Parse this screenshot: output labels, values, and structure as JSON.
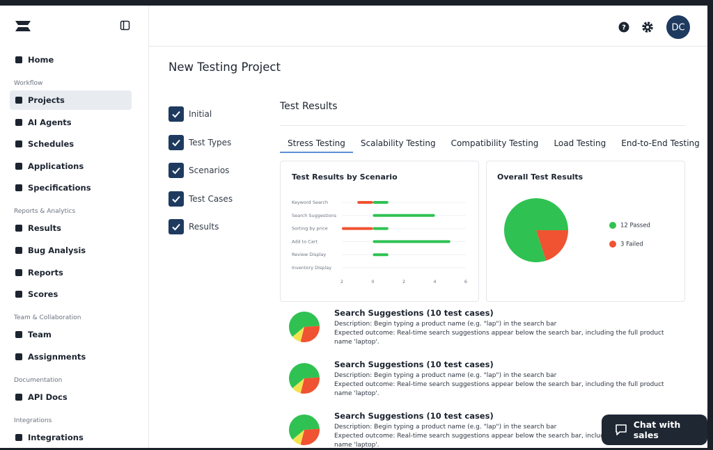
{
  "header": {
    "avatar": "DC"
  },
  "sidebar": {
    "groups": [
      {
        "items": [
          {
            "label": "Home"
          }
        ]
      },
      {
        "label": "Workflow",
        "items": [
          {
            "label": "Projects",
            "active": true
          },
          {
            "label": "AI Agents"
          },
          {
            "label": "Schedules"
          },
          {
            "label": "Applications"
          },
          {
            "label": "Specifications"
          }
        ]
      },
      {
        "label": "Reports & Analytics",
        "items": [
          {
            "label": "Results"
          },
          {
            "label": "Bug Analysis"
          },
          {
            "label": "Reports"
          },
          {
            "label": "Scores"
          }
        ]
      },
      {
        "label": "Team & Collaboration",
        "items": [
          {
            "label": "Team"
          },
          {
            "label": "Assignments"
          }
        ]
      },
      {
        "label": "Documentation",
        "items": [
          {
            "label": "API Docs"
          }
        ]
      },
      {
        "label": "Integrations",
        "items": [
          {
            "label": "Integrations"
          }
        ]
      }
    ]
  },
  "page_title": "New Testing Project",
  "steps": [
    {
      "label": "Initial",
      "checked": true
    },
    {
      "label": "Test Types",
      "checked": true
    },
    {
      "label": "Scenarios",
      "checked": true
    },
    {
      "label": "Test Cases",
      "checked": true
    },
    {
      "label": "Results",
      "checked": true
    }
  ],
  "section_title": "Test Results",
  "tabs": [
    {
      "label": "Stress Testing",
      "active": true
    },
    {
      "label": "Scalability Testing"
    },
    {
      "label": "Compatibility Testing"
    },
    {
      "label": "Load Testing"
    },
    {
      "label": "End-to-End Testing"
    }
  ],
  "results_by_scenario": {
    "type": "bar",
    "orientation": "horizontal",
    "title": "Test Results by Scenario",
    "categories": [
      "Keyword Search",
      "Search Suggestions",
      "Sorting by price",
      "Add to Cart",
      "Review Display",
      "Inventory Display"
    ],
    "series": [
      {
        "color": "#ef5332",
        "values": [
          -1,
          0,
          -2,
          0,
          0,
          0
        ]
      },
      {
        "color": "#2fc252",
        "values": [
          1,
          4,
          1,
          5,
          1,
          0
        ]
      }
    ],
    "xlim": [
      -2,
      6
    ],
    "xticks": [
      {
        "value": -2,
        "label": "2"
      },
      0,
      2,
      4,
      6
    ],
    "grid": true
  },
  "overall_results": {
    "type": "pie",
    "title": "Overall Test Results",
    "values": [
      12,
      3
    ],
    "value_labels": [
      "12 Passed",
      "3 Failed"
    ],
    "colors": [
      "#2fc252",
      "#ef5332"
    ]
  },
  "test_cases": [
    {
      "title": "Search Suggestions (10 test cases)",
      "description": "Description: Begin typing a product name (e.g. \"lap\") in the search bar",
      "expected_outcome": "Expected outcome: Real-time search suggestions appear below the search bar, including the full product name 'laptop'.",
      "results": {
        "type": "pie",
        "values": [
          6,
          3,
          1
        ],
        "colors": [
          "#2fc252",
          "#ef5332",
          "#f2e24e"
        ]
      }
    },
    {
      "title": "Search Suggestions (10 test cases)",
      "description": "Description: Begin typing a product name (e.g. \"lap\") in the search bar",
      "expected_outcome": "Expected outcome: Real-time search suggestions appear below the search bar, including the full product name 'laptop'.",
      "results": {
        "type": "pie",
        "values": [
          6,
          3,
          1
        ],
        "colors": [
          "#2fc252",
          "#ef5332",
          "#f2e24e"
        ]
      }
    },
    {
      "title": "Search Suggestions (10 test cases)",
      "description": "Description: Begin typing a product name (e.g. \"lap\") in the search bar",
      "expected_outcome": "Expected outcome: Real-time search suggestions appear below the search bar, including the full product name 'laptop'.",
      "results": {
        "type": "pie",
        "values": [
          6,
          3,
          1
        ],
        "colors": [
          "#2fc252",
          "#ef5332",
          "#f2e24e"
        ]
      }
    }
  ],
  "chat_button": "Chat with sales"
}
